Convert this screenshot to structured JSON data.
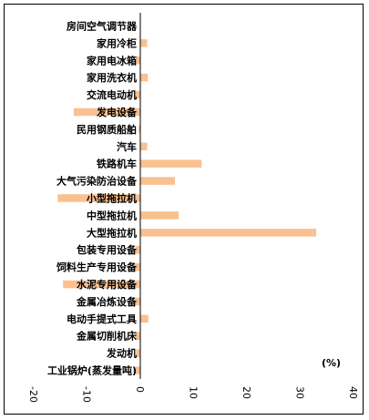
{
  "chart_data": {
    "type": "bar",
    "orientation": "horizontal",
    "categories": [
      "房间空气调节器",
      "家用冷柜",
      "家用电冰箱",
      "家用洗衣机",
      "交流电动机",
      "发电设备",
      "民用钢质船舶",
      "汽车",
      "铁路机车",
      "大气污染防治设备",
      "小型拖拉机",
      "中型拖拉机",
      "大型拖拉机",
      "包装专用设备",
      "饲料生产专用设备",
      "水泥专用设备",
      "金属冶炼设备",
      "电动手提式工具",
      "金属切削机床",
      "发动机",
      "工业锅炉(蒸发量吨)"
    ],
    "values": [
      0,
      1.3,
      -0.8,
      1.4,
      -1.2,
      -12.5,
      -0.3,
      1.3,
      11.5,
      6.5,
      -15.5,
      7.2,
      33.0,
      -0.9,
      -1.3,
      -14.5,
      -1.4,
      1.5,
      -1.0,
      -0.8,
      -1.3
    ],
    "xlim": [
      -20,
      40
    ],
    "ticks": [
      -20,
      -10,
      0,
      10,
      20,
      30,
      40
    ],
    "unit_label": "(%)",
    "bar_color": "#FAC090",
    "grid": false
  }
}
